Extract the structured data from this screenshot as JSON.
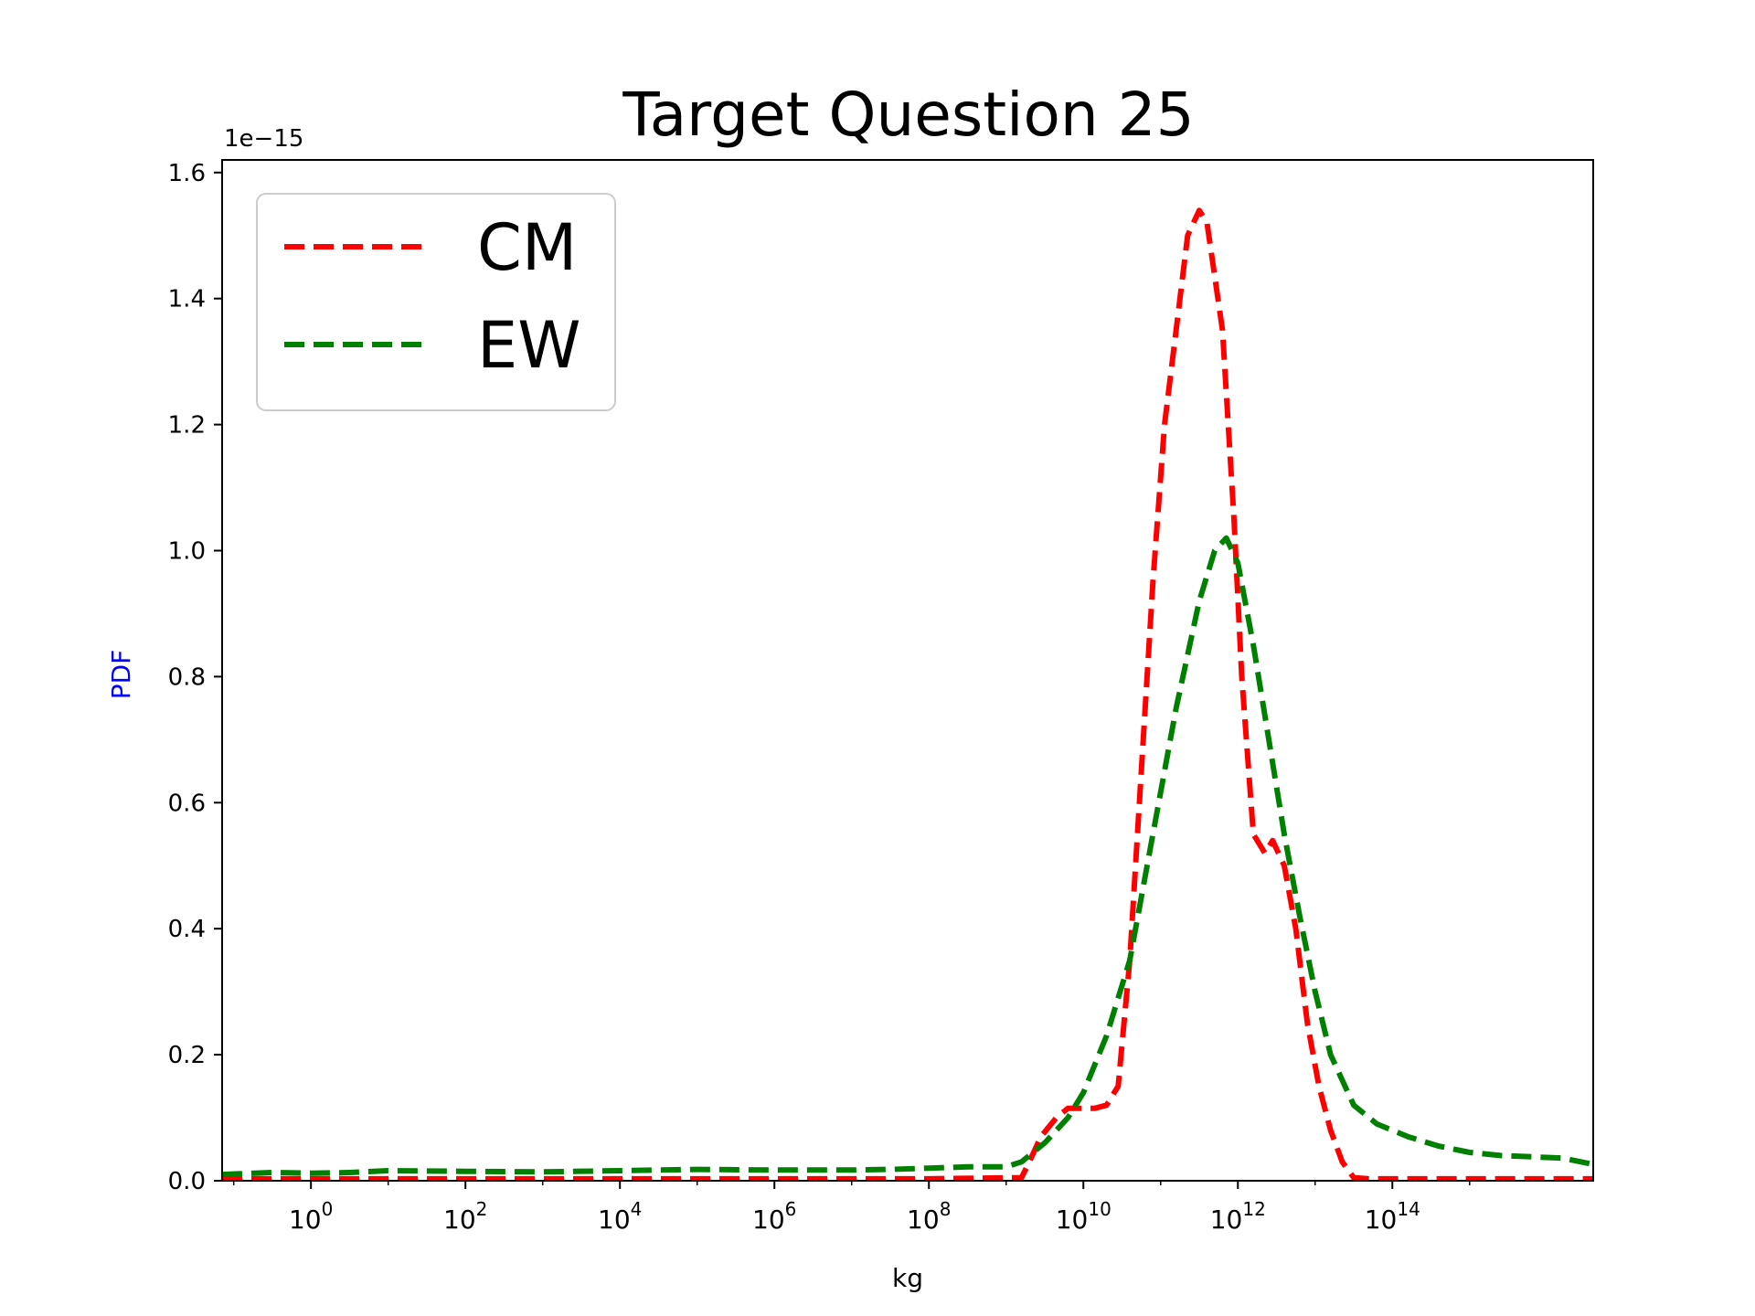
{
  "chart_data": {
    "type": "line",
    "title": "Target Question 25",
    "xlabel": "kg",
    "ylabel": "PDF",
    "ylabel_color": "#0000ff",
    "y_offset_label": "1e−15",
    "x_scale": "log",
    "x_log10_range": [
      -1.15,
      16.6
    ],
    "xlim": [
      0.0708,
      3.98e+16
    ],
    "ylim": [
      0,
      1.62
    ],
    "x_ticks": [
      {
        "base": "10",
        "exp": "0",
        "log10": 0
      },
      {
        "base": "10",
        "exp": "2",
        "log10": 2
      },
      {
        "base": "10",
        "exp": "4",
        "log10": 4
      },
      {
        "base": "10",
        "exp": "6",
        "log10": 6
      },
      {
        "base": "10",
        "exp": "8",
        "log10": 8
      },
      {
        "base": "10",
        "exp": "10",
        "log10": 10
      },
      {
        "base": "10",
        "exp": "12",
        "log10": 12
      },
      {
        "base": "10",
        "exp": "14",
        "log10": 14
      }
    ],
    "y_ticks": [
      {
        "value": 0.0,
        "label": "0.0"
      },
      {
        "value": 0.2,
        "label": "0.2"
      },
      {
        "value": 0.4,
        "label": "0.4"
      },
      {
        "value": 0.6,
        "label": "0.6"
      },
      {
        "value": 0.8,
        "label": "0.8"
      },
      {
        "value": 1.0,
        "label": "1.0"
      },
      {
        "value": 1.2,
        "label": "1.2"
      },
      {
        "value": 1.4,
        "label": "1.4"
      },
      {
        "value": 1.6,
        "label": "1.6"
      }
    ],
    "grid": false,
    "legend": {
      "position": "top-left"
    },
    "series": [
      {
        "name": "CM",
        "color": "#ff0000",
        "style": "dashed",
        "x_log10": [
          -1.15,
          0,
          2,
          4,
          6,
          8,
          9.2,
          9.3,
          9.45,
          9.65,
          9.8,
          10.0,
          10.15,
          10.3,
          10.45,
          10.6,
          10.75,
          10.9,
          11.05,
          11.2,
          11.35,
          11.5,
          11.6,
          11.8,
          11.95,
          12.05,
          12.2,
          12.35,
          12.45,
          12.6,
          12.75,
          12.9,
          13.05,
          13.2,
          13.35,
          13.5,
          13.7,
          14,
          16.6
        ],
        "y": [
          0.003,
          0.003,
          0.003,
          0.003,
          0.003,
          0.003,
          0.005,
          0.03,
          0.07,
          0.1,
          0.115,
          0.115,
          0.115,
          0.12,
          0.15,
          0.35,
          0.65,
          0.95,
          1.2,
          1.35,
          1.5,
          1.54,
          1.52,
          1.35,
          1.05,
          0.8,
          0.55,
          0.52,
          0.54,
          0.5,
          0.4,
          0.25,
          0.15,
          0.08,
          0.03,
          0.005,
          0.003,
          0.003,
          0.003
        ]
      },
      {
        "name": "EW",
        "color": "#008000",
        "style": "dashed",
        "x_log10": [
          -1.15,
          -0.5,
          0,
          0.5,
          1,
          2,
          3,
          4,
          5,
          6,
          7,
          7.5,
          8,
          8.5,
          9,
          9.2,
          9.5,
          9.8,
          10.0,
          10.3,
          10.6,
          10.9,
          11.2,
          11.5,
          11.7,
          11.85,
          12.0,
          12.2,
          12.4,
          12.6,
          12.8,
          13.0,
          13.2,
          13.5,
          13.8,
          14.2,
          14.6,
          15.0,
          15.4,
          15.8,
          16.2,
          16.6
        ],
        "y": [
          0.01,
          0.013,
          0.012,
          0.013,
          0.016,
          0.015,
          0.014,
          0.016,
          0.018,
          0.017,
          0.017,
          0.018,
          0.02,
          0.022,
          0.022,
          0.03,
          0.06,
          0.1,
          0.14,
          0.23,
          0.35,
          0.55,
          0.75,
          0.92,
          1.0,
          1.02,
          0.98,
          0.85,
          0.7,
          0.55,
          0.42,
          0.3,
          0.2,
          0.12,
          0.09,
          0.07,
          0.055,
          0.045,
          0.04,
          0.038,
          0.036,
          0.026
        ]
      }
    ]
  }
}
